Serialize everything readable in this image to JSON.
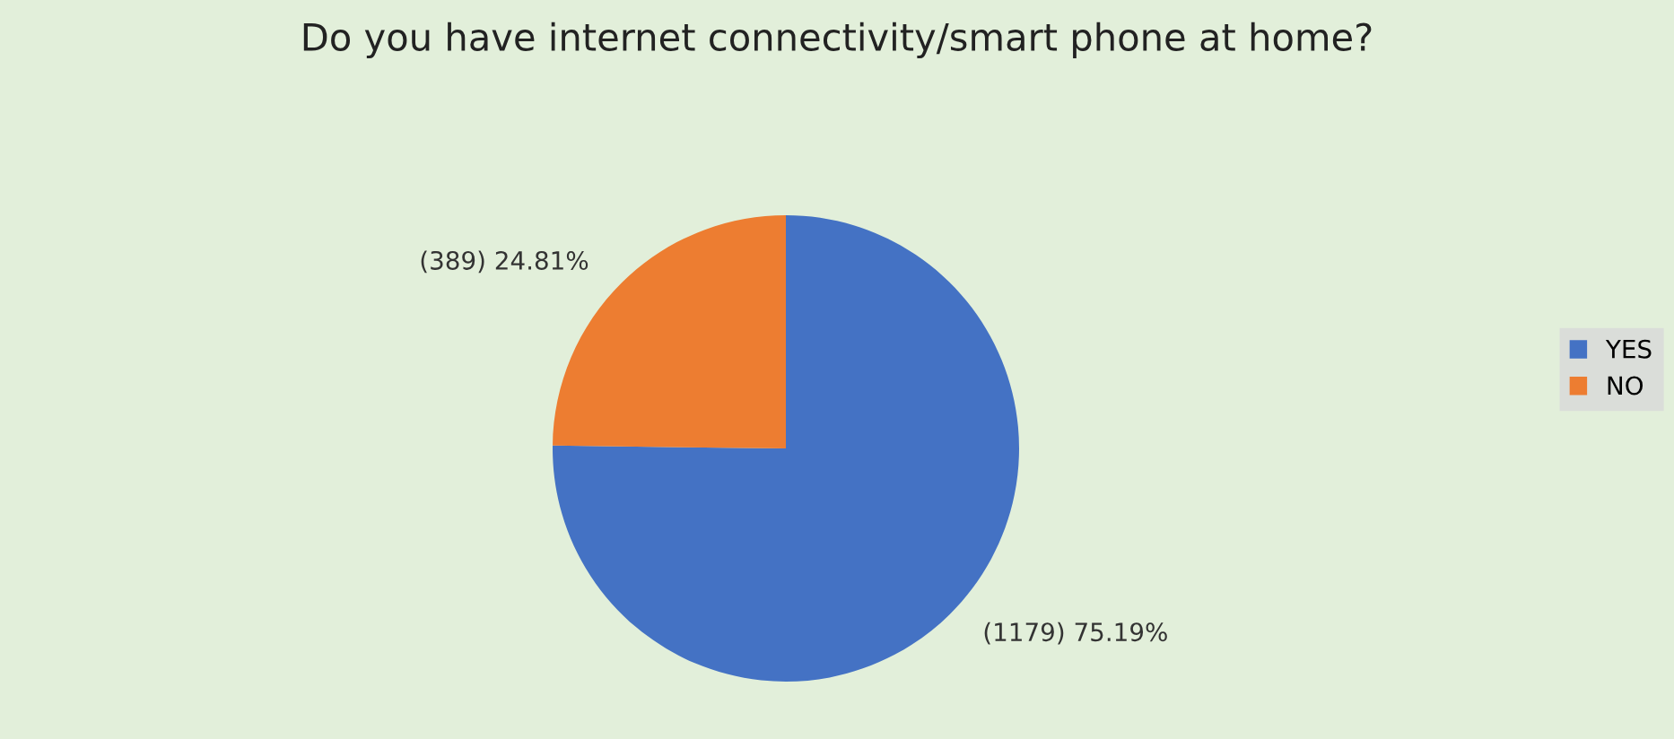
{
  "chart_data": {
    "type": "pie",
    "title": "Do you have internet connectivity/smart phone at home?",
    "categories": [
      "YES",
      "NO"
    ],
    "values": [
      1179,
      389
    ],
    "colors": [
      "#4472c4",
      "#ed7d31"
    ],
    "value_labels": [
      "(1179) 75.19%",
      "(389) 24.81%"
    ],
    "legend": "right"
  }
}
